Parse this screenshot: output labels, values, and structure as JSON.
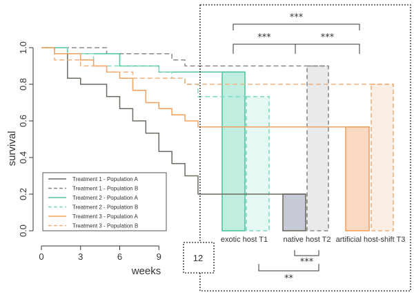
{
  "chart_data": {
    "type": "line",
    "xlabel": "weeks",
    "ylabel": "survival",
    "x_ticks": [
      "0",
      "3",
      "6",
      "9",
      "12"
    ],
    "y_ticks": [
      "0.0",
      "0.2",
      "0.4",
      "0.6",
      "0.8",
      "1.0"
    ],
    "xlim": [
      0,
      12
    ],
    "ylim": [
      0,
      1
    ],
    "legend_position": "bottom-left",
    "series": [
      {
        "name": "Treatment 1 - Population A",
        "color": "#6b6b60",
        "dash": false,
        "x": [
          0,
          1,
          2,
          3,
          5,
          6,
          7,
          8,
          9,
          10,
          11,
          12
        ],
        "y": [
          1.0,
          0.967,
          0.833,
          0.8,
          0.733,
          0.667,
          0.6,
          0.533,
          0.433,
          0.367,
          0.3,
          0.2
        ]
      },
      {
        "name": "Treatment 1 - Population B",
        "color": "#888888",
        "dash": true,
        "x": [
          0,
          5,
          10,
          11,
          12
        ],
        "y": [
          1.0,
          0.967,
          0.933,
          0.9,
          0.9
        ]
      },
      {
        "name": "Treatment 2 - Population A",
        "color": "#4fc4a2",
        "dash": false,
        "x": [
          0,
          2,
          6,
          9,
          12
        ],
        "y": [
          1.0,
          0.967,
          0.9,
          0.867,
          0.867
        ]
      },
      {
        "name": "Treatment 2 - Population B",
        "color": "#7dd8c4",
        "dash": true,
        "x": [
          0,
          2,
          4,
          9,
          10,
          11,
          12
        ],
        "y": [
          1.0,
          0.967,
          0.9,
          0.867,
          0.833,
          0.8,
          0.733
        ]
      },
      {
        "name": "Treatment 3 - Population A",
        "color": "#f5a05a",
        "dash": false,
        "x": [
          0,
          1,
          3,
          4,
          5,
          6,
          7,
          8,
          9,
          10,
          11,
          12
        ],
        "y": [
          1.0,
          0.967,
          0.933,
          0.9,
          0.867,
          0.833,
          0.767,
          0.7,
          0.667,
          0.633,
          0.6,
          0.567
        ]
      },
      {
        "name": "Treatment 3 - Population B",
        "color": "#f5b07a",
        "dash": true,
        "x": [
          0,
          1,
          3,
          5,
          7,
          9,
          11,
          12
        ],
        "y": [
          1.0,
          0.933,
          0.9,
          0.867,
          0.833,
          0.833,
          0.8,
          0.8
        ]
      }
    ],
    "bar_groups": [
      {
        "label": "exotic host T1",
        "bars": [
          {
            "value": 0.867,
            "fill": "#bfeee1",
            "stroke": "#4fc4a2",
            "dash": false
          },
          {
            "value": 0.733,
            "fill": "#e6f8f3",
            "stroke": "#7dd8c4",
            "dash": true
          }
        ]
      },
      {
        "label": "native host T2",
        "bars": [
          {
            "value": 0.2,
            "fill": "#c6cad6",
            "stroke": "#6b6b60",
            "dash": false
          },
          {
            "value": 0.9,
            "fill": "#e8eaec",
            "stroke": "#888888",
            "dash": true
          }
        ]
      },
      {
        "label": "artificial host-shift T3",
        "bars": [
          {
            "value": 0.567,
            "fill": "#fad9c4",
            "stroke": "#f5a05a",
            "dash": false
          },
          {
            "value": 0.8,
            "fill": "#fdeee3",
            "stroke": "#f5b07a",
            "dash": true
          }
        ]
      }
    ],
    "significance": [
      {
        "label": "***",
        "from_group": 0,
        "to_group": 2,
        "position": "top"
      },
      {
        "label": "***",
        "from_group": 0,
        "to_group": 1,
        "position": "top"
      },
      {
        "label": "***",
        "from_group": 1,
        "to_group": 2,
        "position": "top"
      },
      {
        "label": "***",
        "from_group": 1,
        "to_group": 1,
        "position": "bottom"
      },
      {
        "label": "**",
        "from_group": 0,
        "to_group": 1,
        "position": "bottom"
      }
    ]
  }
}
